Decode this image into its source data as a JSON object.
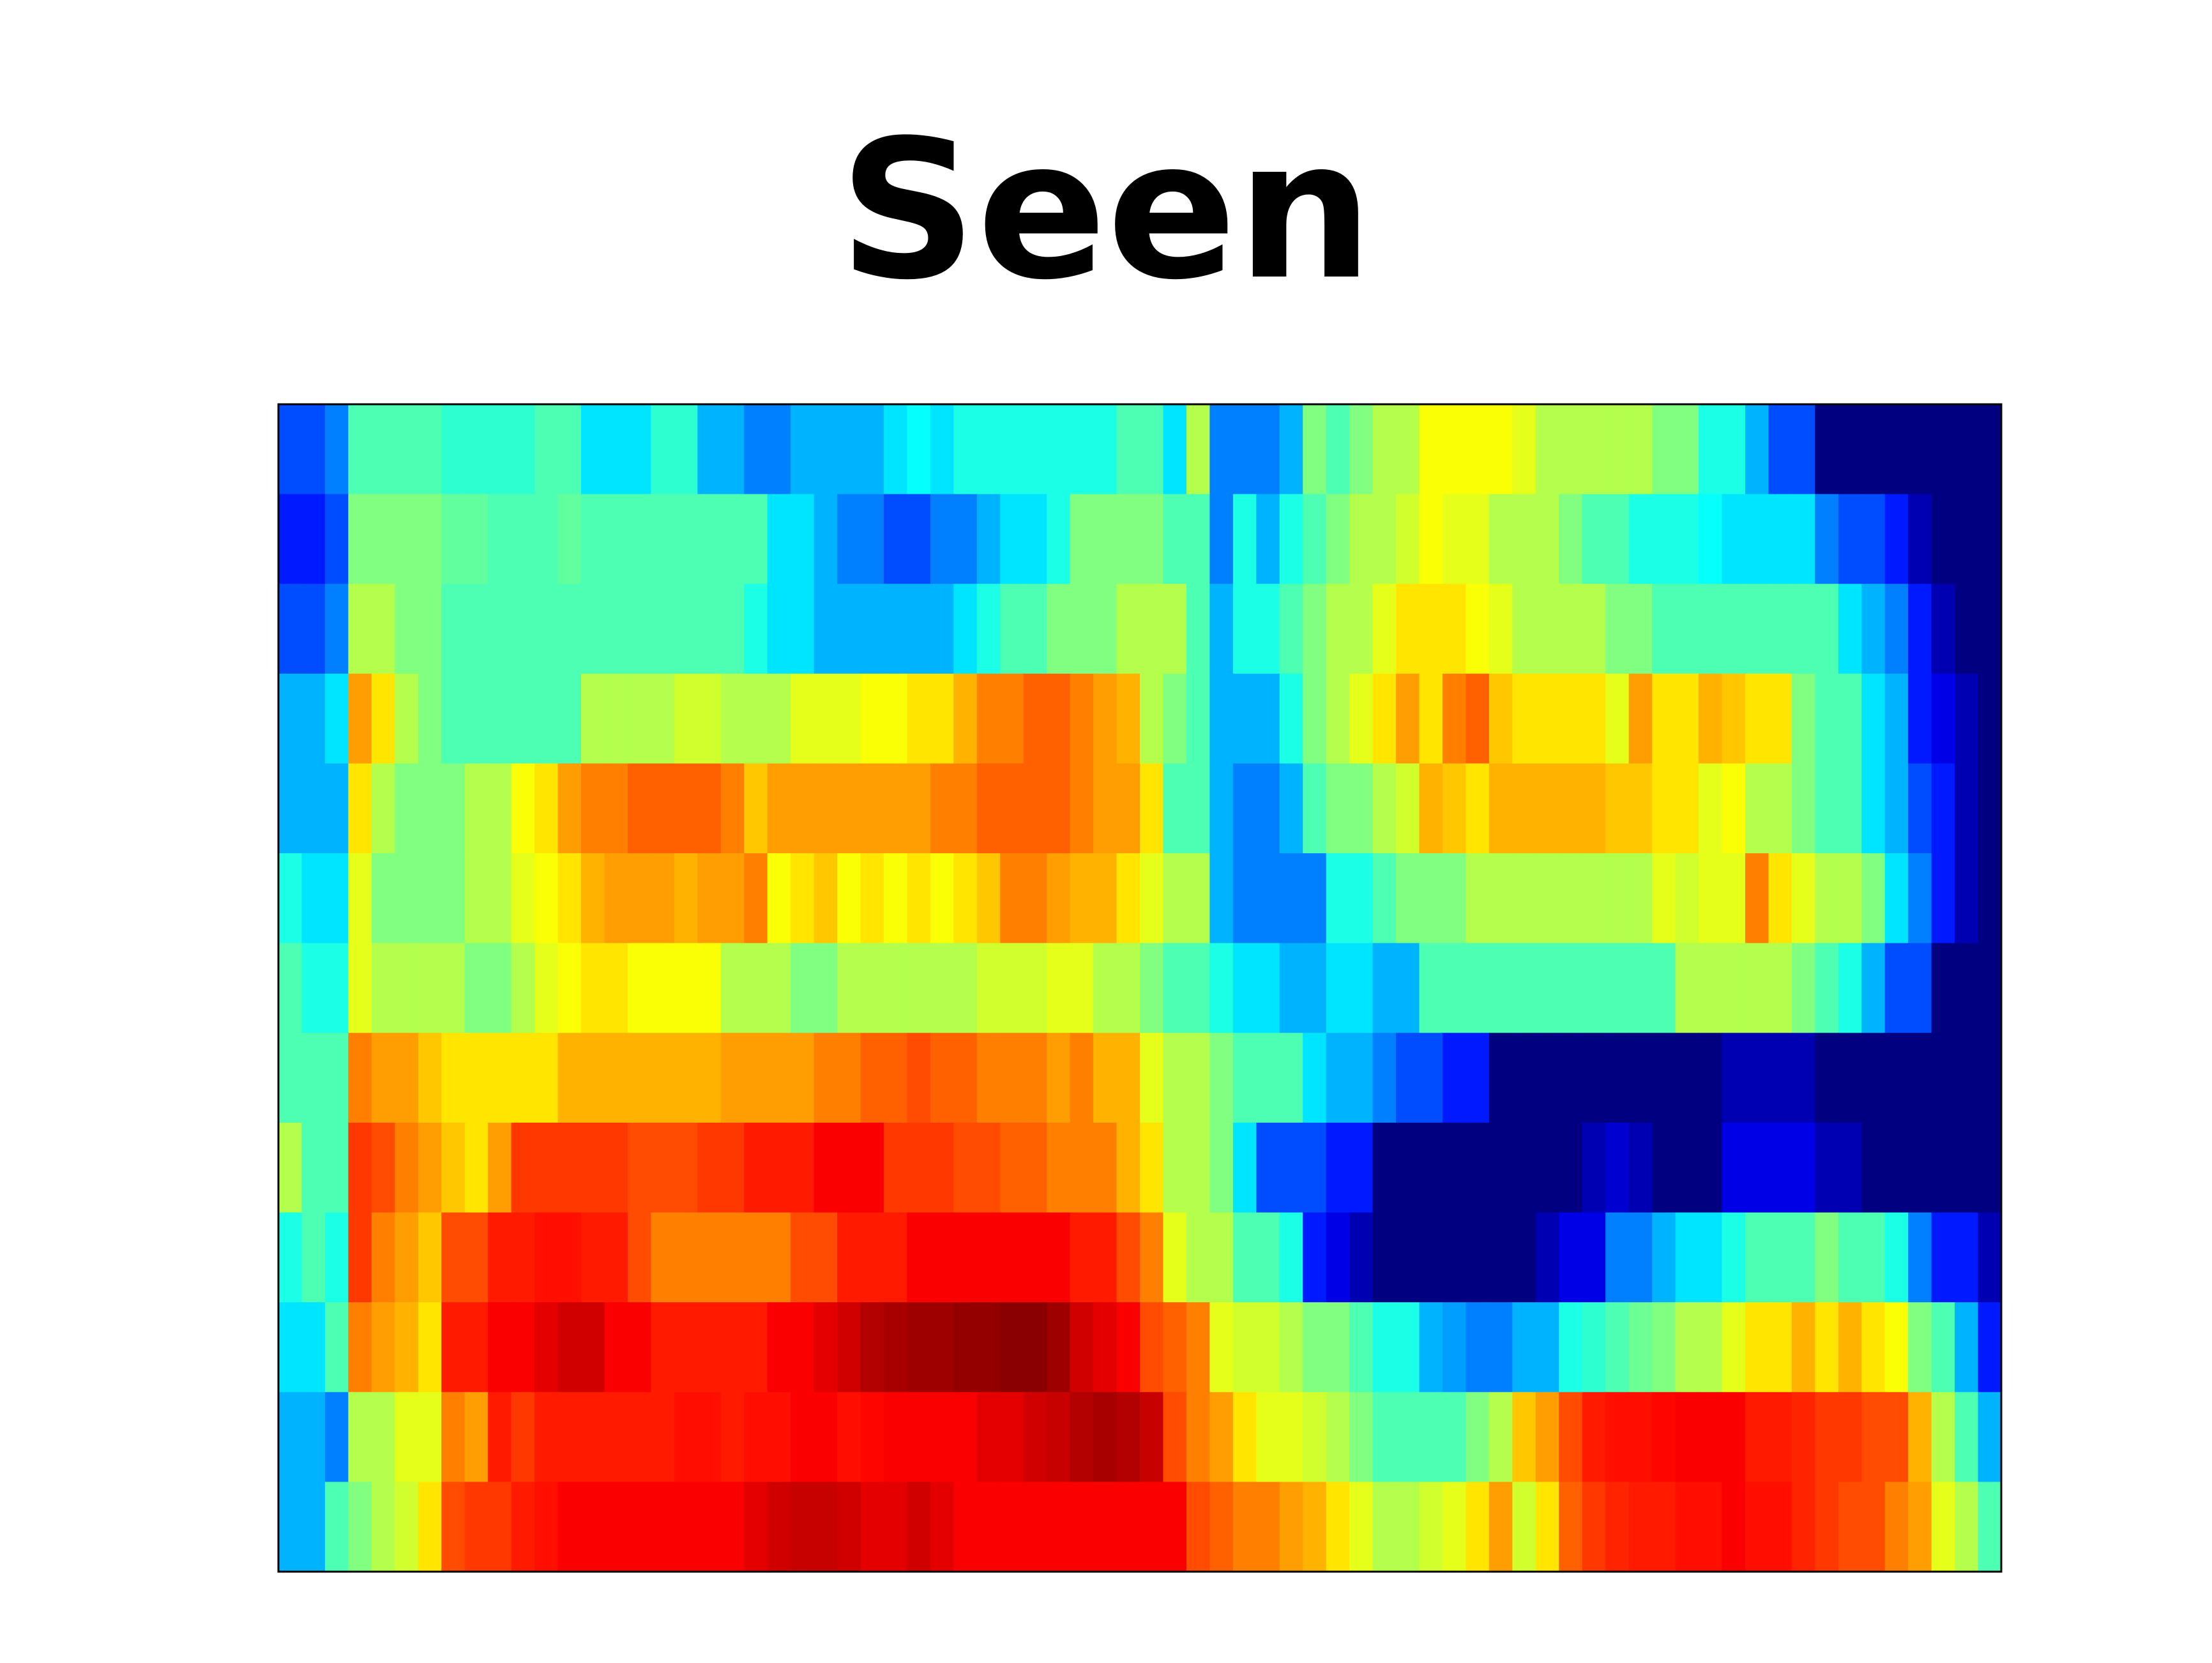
{
  "chart_data": {
    "type": "heatmap",
    "title": "Seen",
    "xlabel": "",
    "ylabel": "",
    "colormap": "jet",
    "value_range": [
      0,
      1
    ],
    "n_rows": 13,
    "n_cols": 74,
    "rows": [
      [
        0.2,
        0.2,
        0.25,
        0.45,
        0.45,
        0.45,
        0.45,
        0.42,
        0.42,
        0.42,
        0.42,
        0.45,
        0.45,
        0.35,
        0.35,
        0.35,
        0.42,
        0.42,
        0.3,
        0.3,
        0.25,
        0.25,
        0.3,
        0.3,
        0.3,
        0.3,
        0.35,
        0.38,
        0.35,
        0.4,
        0.4,
        0.4,
        0.4,
        0.4,
        0.4,
        0.4,
        0.45,
        0.45,
        0.35,
        0.55,
        0.25,
        0.25,
        0.25,
        0.3,
        0.5,
        0.45,
        0.5,
        0.55,
        0.55,
        0.62,
        0.62,
        0.62,
        0.62,
        0.6,
        0.55,
        0.55,
        0.55,
        0.55,
        0.55,
        0.5,
        0.5,
        0.4,
        0.4,
        0.3,
        0.2,
        0.2,
        0.0,
        0.0,
        0.0,
        0.0,
        0.0,
        0.0,
        0.0,
        0.0
      ],
      [
        0.15,
        0.15,
        0.2,
        0.5,
        0.5,
        0.5,
        0.5,
        0.47,
        0.47,
        0.45,
        0.45,
        0.45,
        0.47,
        0.45,
        0.45,
        0.45,
        0.45,
        0.45,
        0.45,
        0.45,
        0.45,
        0.35,
        0.35,
        0.3,
        0.25,
        0.25,
        0.2,
        0.2,
        0.25,
        0.25,
        0.3,
        0.35,
        0.35,
        0.4,
        0.5,
        0.5,
        0.5,
        0.5,
        0.45,
        0.45,
        0.25,
        0.4,
        0.3,
        0.4,
        0.45,
        0.5,
        0.55,
        0.55,
        0.58,
        0.62,
        0.6,
        0.6,
        0.55,
        0.55,
        0.55,
        0.5,
        0.45,
        0.45,
        0.4,
        0.4,
        0.4,
        0.38,
        0.35,
        0.35,
        0.35,
        0.35,
        0.25,
        0.2,
        0.2,
        0.15,
        0.05,
        0.0,
        0.0,
        0.0
      ],
      [
        0.2,
        0.2,
        0.25,
        0.55,
        0.55,
        0.5,
        0.5,
        0.45,
        0.45,
        0.45,
        0.45,
        0.45,
        0.45,
        0.45,
        0.45,
        0.45,
        0.45,
        0.45,
        0.45,
        0.45,
        0.4,
        0.35,
        0.35,
        0.3,
        0.3,
        0.3,
        0.3,
        0.3,
        0.3,
        0.35,
        0.4,
        0.45,
        0.45,
        0.5,
        0.5,
        0.5,
        0.55,
        0.55,
        0.55,
        0.45,
        0.3,
        0.4,
        0.4,
        0.45,
        0.5,
        0.55,
        0.55,
        0.6,
        0.65,
        0.65,
        0.65,
        0.62,
        0.6,
        0.55,
        0.55,
        0.55,
        0.55,
        0.5,
        0.5,
        0.45,
        0.45,
        0.45,
        0.45,
        0.45,
        0.45,
        0.45,
        0.45,
        0.35,
        0.3,
        0.25,
        0.15,
        0.05,
        0.0,
        0.0
      ],
      [
        0.3,
        0.3,
        0.35,
        0.72,
        0.65,
        0.55,
        0.5,
        0.45,
        0.45,
        0.45,
        0.45,
        0.45,
        0.45,
        0.55,
        0.55,
        0.55,
        0.55,
        0.58,
        0.58,
        0.55,
        0.55,
        0.55,
        0.6,
        0.6,
        0.6,
        0.62,
        0.62,
        0.65,
        0.65,
        0.7,
        0.75,
        0.75,
        0.78,
        0.78,
        0.75,
        0.72,
        0.7,
        0.55,
        0.5,
        0.45,
        0.3,
        0.3,
        0.3,
        0.4,
        0.5,
        0.55,
        0.6,
        0.65,
        0.72,
        0.65,
        0.75,
        0.78,
        0.68,
        0.65,
        0.65,
        0.65,
        0.65,
        0.6,
        0.72,
        0.65,
        0.65,
        0.7,
        0.68,
        0.65,
        0.65,
        0.5,
        0.45,
        0.45,
        0.35,
        0.3,
        0.15,
        0.1,
        0.05,
        0.0
      ],
      [
        0.3,
        0.3,
        0.3,
        0.65,
        0.55,
        0.5,
        0.5,
        0.5,
        0.55,
        0.55,
        0.62,
        0.65,
        0.72,
        0.75,
        0.75,
        0.78,
        0.78,
        0.78,
        0.78,
        0.75,
        0.68,
        0.72,
        0.72,
        0.72,
        0.72,
        0.72,
        0.72,
        0.72,
        0.75,
        0.75,
        0.78,
        0.78,
        0.78,
        0.78,
        0.75,
        0.72,
        0.72,
        0.65,
        0.45,
        0.45,
        0.3,
        0.25,
        0.25,
        0.3,
        0.45,
        0.5,
        0.5,
        0.55,
        0.58,
        0.7,
        0.68,
        0.65,
        0.7,
        0.7,
        0.7,
        0.7,
        0.7,
        0.68,
        0.68,
        0.65,
        0.65,
        0.6,
        0.62,
        0.55,
        0.55,
        0.5,
        0.45,
        0.45,
        0.35,
        0.3,
        0.2,
        0.15,
        0.05,
        0.0
      ],
      [
        0.4,
        0.35,
        0.35,
        0.6,
        0.5,
        0.5,
        0.5,
        0.5,
        0.55,
        0.55,
        0.6,
        0.62,
        0.65,
        0.7,
        0.72,
        0.72,
        0.72,
        0.7,
        0.72,
        0.72,
        0.75,
        0.62,
        0.65,
        0.68,
        0.62,
        0.65,
        0.62,
        0.65,
        0.62,
        0.65,
        0.68,
        0.75,
        0.75,
        0.72,
        0.7,
        0.7,
        0.65,
        0.6,
        0.55,
        0.55,
        0.3,
        0.25,
        0.25,
        0.25,
        0.25,
        0.4,
        0.4,
        0.45,
        0.5,
        0.5,
        0.5,
        0.55,
        0.55,
        0.55,
        0.55,
        0.55,
        0.55,
        0.55,
        0.55,
        0.6,
        0.58,
        0.6,
        0.6,
        0.75,
        0.65,
        0.6,
        0.55,
        0.55,
        0.5,
        0.35,
        0.25,
        0.15,
        0.05,
        0.0
      ],
      [
        0.45,
        0.4,
        0.4,
        0.6,
        0.55,
        0.55,
        0.55,
        0.55,
        0.5,
        0.5,
        0.55,
        0.6,
        0.62,
        0.65,
        0.65,
        0.62,
        0.62,
        0.62,
        0.62,
        0.55,
        0.55,
        0.55,
        0.5,
        0.5,
        0.55,
        0.55,
        0.55,
        0.55,
        0.55,
        0.55,
        0.58,
        0.58,
        0.58,
        0.6,
        0.6,
        0.55,
        0.55,
        0.5,
        0.45,
        0.45,
        0.4,
        0.35,
        0.35,
        0.3,
        0.3,
        0.35,
        0.35,
        0.3,
        0.3,
        0.45,
        0.45,
        0.45,
        0.45,
        0.45,
        0.45,
        0.45,
        0.45,
        0.45,
        0.45,
        0.45,
        0.55,
        0.55,
        0.55,
        0.55,
        0.55,
        0.5,
        0.45,
        0.4,
        0.3,
        0.2,
        0.2,
        0.0,
        0.0,
        0.0
      ],
      [
        0.45,
        0.45,
        0.45,
        0.75,
        0.72,
        0.72,
        0.68,
        0.65,
        0.65,
        0.65,
        0.65,
        0.65,
        0.7,
        0.7,
        0.7,
        0.7,
        0.7,
        0.7,
        0.7,
        0.72,
        0.72,
        0.72,
        0.72,
        0.75,
        0.75,
        0.78,
        0.78,
        0.8,
        0.78,
        0.78,
        0.75,
        0.75,
        0.75,
        0.72,
        0.75,
        0.7,
        0.7,
        0.6,
        0.55,
        0.55,
        0.5,
        0.45,
        0.45,
        0.45,
        0.35,
        0.3,
        0.3,
        0.25,
        0.2,
        0.2,
        0.15,
        0.15,
        0.0,
        0.0,
        0.0,
        0.0,
        0.0,
        0.0,
        0.0,
        0.0,
        0.0,
        0.0,
        0.05,
        0.05,
        0.05,
        0.05,
        0.0,
        0.0,
        0.0,
        0.0,
        0.0,
        0.0,
        0.0,
        0.0
      ],
      [
        0.55,
        0.45,
        0.45,
        0.82,
        0.8,
        0.75,
        0.72,
        0.68,
        0.65,
        0.72,
        0.82,
        0.82,
        0.82,
        0.82,
        0.82,
        0.8,
        0.8,
        0.8,
        0.82,
        0.82,
        0.85,
        0.85,
        0.85,
        0.88,
        0.88,
        0.88,
        0.82,
        0.82,
        0.82,
        0.8,
        0.8,
        0.78,
        0.78,
        0.75,
        0.75,
        0.75,
        0.7,
        0.65,
        0.55,
        0.55,
        0.5,
        0.35,
        0.2,
        0.2,
        0.2,
        0.15,
        0.15,
        0.0,
        0.0,
        0.0,
        0.0,
        0.0,
        0.0,
        0.0,
        0.0,
        0.0,
        0.05,
        0.08,
        0.05,
        0.0,
        0.0,
        0.0,
        0.1,
        0.1,
        0.1,
        0.1,
        0.05,
        0.05,
        0.0,
        0.0,
        0.0,
        0.0,
        0.0,
        0.0
      ],
      [
        0.4,
        0.45,
        0.4,
        0.82,
        0.75,
        0.72,
        0.68,
        0.8,
        0.8,
        0.85,
        0.85,
        0.86,
        0.86,
        0.85,
        0.85,
        0.8,
        0.75,
        0.75,
        0.75,
        0.75,
        0.75,
        0.75,
        0.8,
        0.8,
        0.85,
        0.85,
        0.85,
        0.88,
        0.88,
        0.88,
        0.88,
        0.88,
        0.88,
        0.88,
        0.85,
        0.85,
        0.8,
        0.75,
        0.6,
        0.55,
        0.55,
        0.45,
        0.45,
        0.4,
        0.15,
        0.1,
        0.05,
        0.0,
        0.0,
        0.0,
        0.0,
        0.0,
        0.0,
        0.0,
        0.05,
        0.1,
        0.1,
        0.25,
        0.25,
        0.3,
        0.35,
        0.35,
        0.4,
        0.45,
        0.45,
        0.45,
        0.5,
        0.45,
        0.45,
        0.4,
        0.25,
        0.15,
        0.15,
        0.05
      ],
      [
        0.35,
        0.35,
        0.45,
        0.75,
        0.72,
        0.7,
        0.65,
        0.85,
        0.85,
        0.88,
        0.88,
        0.9,
        0.92,
        0.92,
        0.88,
        0.88,
        0.85,
        0.85,
        0.85,
        0.85,
        0.85,
        0.88,
        0.88,
        0.9,
        0.92,
        0.95,
        0.96,
        0.97,
        0.97,
        0.98,
        0.98,
        0.99,
        0.99,
        0.97,
        0.92,
        0.9,
        0.88,
        0.8,
        0.78,
        0.75,
        0.6,
        0.58,
        0.58,
        0.55,
        0.5,
        0.5,
        0.45,
        0.4,
        0.4,
        0.3,
        0.28,
        0.25,
        0.25,
        0.3,
        0.3,
        0.4,
        0.42,
        0.45,
        0.48,
        0.5,
        0.55,
        0.55,
        0.6,
        0.65,
        0.65,
        0.7,
        0.65,
        0.7,
        0.65,
        0.62,
        0.5,
        0.45,
        0.3,
        0.15
      ],
      [
        0.3,
        0.3,
        0.25,
        0.55,
        0.55,
        0.6,
        0.6,
        0.75,
        0.72,
        0.85,
        0.82,
        0.85,
        0.85,
        0.85,
        0.85,
        0.85,
        0.85,
        0.86,
        0.86,
        0.85,
        0.86,
        0.86,
        0.88,
        0.88,
        0.86,
        0.87,
        0.88,
        0.88,
        0.88,
        0.88,
        0.9,
        0.9,
        0.92,
        0.93,
        0.95,
        0.96,
        0.95,
        0.93,
        0.8,
        0.75,
        0.72,
        0.65,
        0.6,
        0.6,
        0.58,
        0.55,
        0.5,
        0.45,
        0.45,
        0.45,
        0.45,
        0.5,
        0.55,
        0.68,
        0.72,
        0.8,
        0.85,
        0.86,
        0.86,
        0.87,
        0.88,
        0.88,
        0.88,
        0.85,
        0.85,
        0.84,
        0.82,
        0.82,
        0.8,
        0.8,
        0.7,
        0.55,
        0.45,
        0.3
      ],
      [
        0.3,
        0.3,
        0.45,
        0.5,
        0.55,
        0.58,
        0.65,
        0.8,
        0.82,
        0.82,
        0.85,
        0.86,
        0.88,
        0.88,
        0.88,
        0.88,
        0.88,
        0.88,
        0.88,
        0.88,
        0.9,
        0.92,
        0.93,
        0.93,
        0.92,
        0.9,
        0.9,
        0.92,
        0.9,
        0.88,
        0.88,
        0.88,
        0.88,
        0.88,
        0.88,
        0.88,
        0.88,
        0.88,
        0.88,
        0.8,
        0.78,
        0.75,
        0.75,
        0.72,
        0.7,
        0.65,
        0.6,
        0.55,
        0.55,
        0.58,
        0.6,
        0.65,
        0.72,
        0.58,
        0.65,
        0.78,
        0.82,
        0.84,
        0.85,
        0.85,
        0.86,
        0.86,
        0.88,
        0.86,
        0.86,
        0.84,
        0.82,
        0.8,
        0.8,
        0.75,
        0.72,
        0.6,
        0.55,
        0.45
      ]
    ]
  }
}
